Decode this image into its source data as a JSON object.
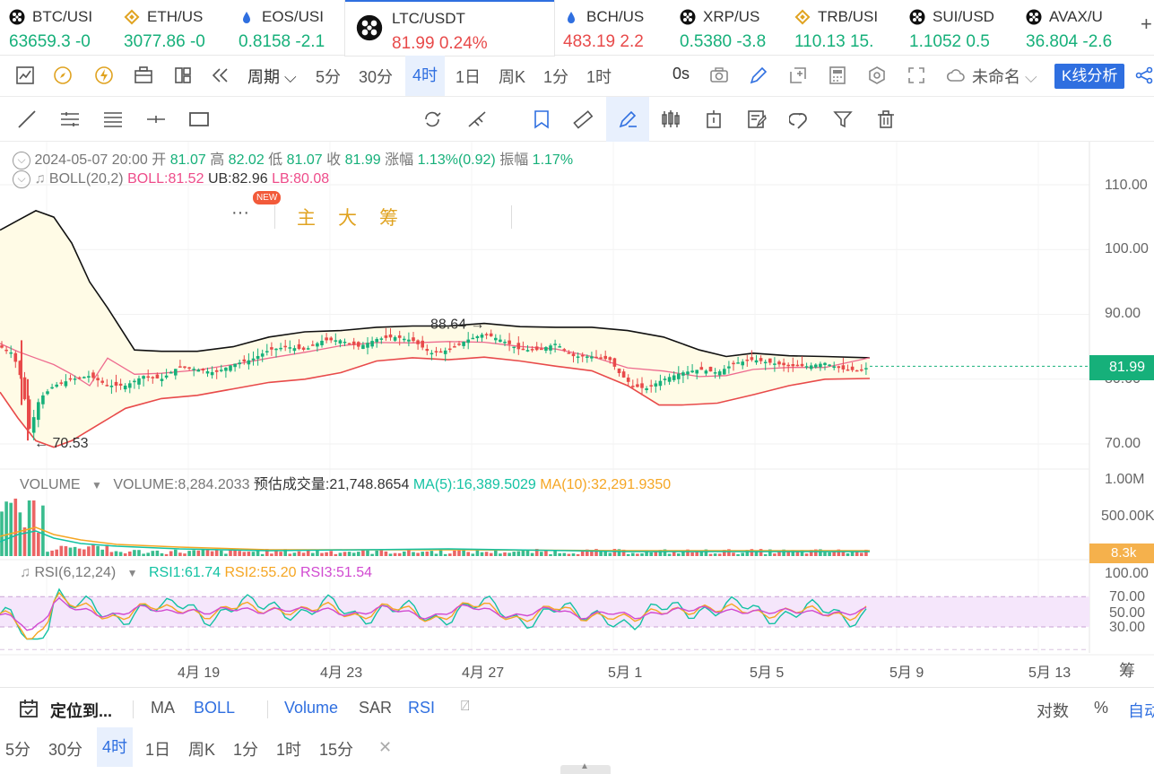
{
  "tickers": [
    {
      "symbol": "BTC/USI",
      "price": "63659.3",
      "change": "-0",
      "dir": "up",
      "icon": "binance-like-icon"
    },
    {
      "symbol": "ETH/US",
      "price": "3077.86",
      "change": "-0",
      "dir": "up",
      "icon": "bnb-icon"
    },
    {
      "symbol": "EOS/USI",
      "price": "0.8158",
      "change": "-2.1",
      "dir": "up",
      "icon": "drop-icon"
    },
    {
      "symbol": "LTC/USDT",
      "price": "81.99",
      "change": "0.24%",
      "dir": "dn",
      "icon": "exchange-icon"
    },
    {
      "symbol": "BCH/US",
      "price": "483.19",
      "change": "2.2",
      "dir": "dn",
      "icon": "drop-icon"
    },
    {
      "symbol": "XRP/US",
      "price": "0.5380",
      "change": "-3.8",
      "dir": "up",
      "icon": "exchange-icon"
    },
    {
      "symbol": "TRB/USI",
      "price": "110.13",
      "change": "15.",
      "dir": "up",
      "icon": "bnb-icon"
    },
    {
      "symbol": "SUI/USD",
      "price": "1.1052",
      "change": "0.5",
      "dir": "up",
      "icon": "exchange-icon"
    },
    {
      "symbol": "AVAX/U",
      "price": "36.804",
      "change": "-2.6",
      "dir": "up",
      "icon": "exchange-icon"
    }
  ],
  "toolbar": {
    "period_label": "周期",
    "intervals": [
      "5分",
      "30分",
      "4时",
      "1日",
      "周K",
      "1分",
      "1时"
    ],
    "selected_interval": "4时",
    "countdown": "0s",
    "layout_name": "未命名",
    "kline_button": "K线分析",
    "new_badge": "NEW",
    "chip_main": "主",
    "chip_big": "大",
    "chip_chip": "筹"
  },
  "ohlc": {
    "time": "2024-05-07 20:00",
    "open_label": "开",
    "open": "81.07",
    "high_label": "高",
    "high": "82.02",
    "low_label": "低",
    "low": "81.07",
    "close_label": "收",
    "close": "81.99",
    "change_label": "涨幅",
    "change": "1.13%(0.92)",
    "amp_label": "振幅",
    "amp": "1.17%"
  },
  "boll": {
    "label": "BOLL(20,2)",
    "mid": "BOLL:81.52",
    "ub": "UB:82.96",
    "lb": "LB:80.08"
  },
  "price_axis": [
    "110.00",
    "100.00",
    "90.00",
    "80.00",
    "70.00"
  ],
  "last_price": "81.99",
  "annotations": {
    "high": "88.64",
    "low": "70.53"
  },
  "volume": {
    "label": "VOLUME",
    "value": "VOLUME:8,284.2033",
    "est": "预估成交量:21,748.8654",
    "ma5": "MA(5):16,389.5029",
    "ma10": "MA(10):32,291.9350",
    "axis": [
      "1.00M",
      "500.00K"
    ],
    "last": "8.3k"
  },
  "rsi": {
    "label": "RSI(6,12,24)",
    "rsi1": "RSI1:61.74",
    "rsi2": "RSI2:55.20",
    "rsi3": "RSI3:51.54",
    "axis": [
      "100.00",
      "70.00",
      "50.00",
      "30.00"
    ]
  },
  "time_axis": [
    "4月 19",
    "4月 23",
    "4月 27",
    "5月 1",
    "5月 5",
    "5月 9",
    "5月 13"
  ],
  "chip_side": "筹",
  "bottom": {
    "locate": "定位到...",
    "indicators": [
      "MA",
      "BOLL",
      "Volume",
      "SAR",
      "RSI"
    ],
    "active_indicators": [
      "BOLL",
      "Volume",
      "RSI"
    ],
    "scale_log": "对数",
    "scale_pct": "%",
    "scale_auto": "自动",
    "quick_intervals": [
      "5分",
      "30分",
      "4时",
      "1日",
      "周K",
      "1分",
      "1时",
      "15分"
    ],
    "quick_selected": "4时"
  },
  "colors": {
    "up": "#16b07a",
    "down": "#e84a4a",
    "accent": "#2f6fe0",
    "boll_mid": "#ee4c8a",
    "boll_band": "#111111",
    "band_fill": "#fffbe6"
  }
}
